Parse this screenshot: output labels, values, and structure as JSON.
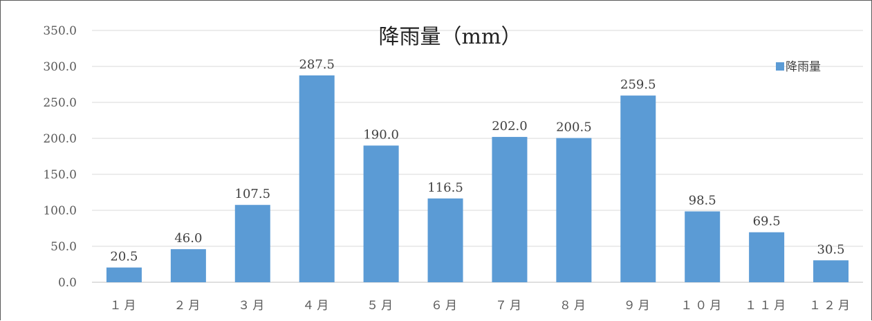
{
  "chart_data": {
    "type": "bar",
    "title": "降雨量（mm）",
    "categories": [
      "１月",
      "２月",
      "３月",
      "４月",
      "５月",
      "６月",
      "７月",
      "８月",
      "９月",
      "１０月",
      "１１月",
      "１２月"
    ],
    "series": [
      {
        "name": "降雨量",
        "values": [
          20.5,
          46.0,
          107.5,
          287.5,
          190.0,
          116.5,
          202.0,
          200.5,
          259.5,
          98.5,
          69.5,
          30.5
        ],
        "data_labels": [
          "20.5",
          "46.0",
          "107.5",
          "287.5",
          "190.0",
          "116.5",
          "202.0",
          "200.5",
          "259.5",
          "98.5",
          "69.5",
          "30.5"
        ]
      }
    ],
    "yticks": [
      "0.0",
      "50.0",
      "100.0",
      "150.0",
      "200.0",
      "250.0",
      "300.0",
      "350.0"
    ],
    "ylim": [
      0,
      350
    ],
    "grid": true,
    "legend": "top-right",
    "colors": {
      "bar": "#5b9bd5",
      "grid": "#d9d9d9",
      "axis": "#bfbfbf"
    }
  }
}
